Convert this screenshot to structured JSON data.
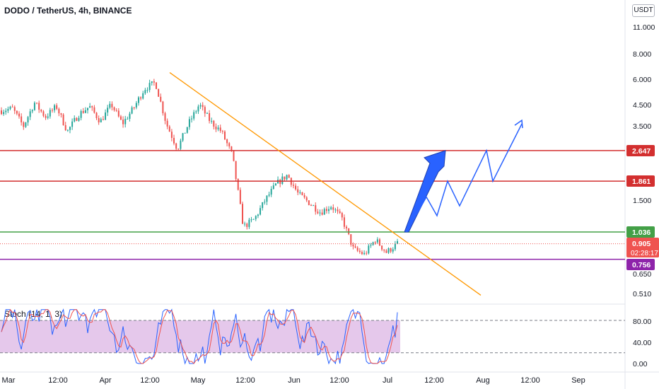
{
  "header": {
    "title": "DODO / TetherUS, 4h, BINANCE",
    "currency": "USDT"
  },
  "stoch": {
    "label": "Stoch (14, 1, 3)",
    "ticks": [
      "80.00",
      "40.00",
      "0.00"
    ],
    "levels": [
      80,
      20
    ]
  },
  "price_axis": {
    "ticks": [
      "11.000",
      "8.000",
      "6.000",
      "4.500",
      "3.500",
      "1.500",
      "0.650",
      "0.510"
    ]
  },
  "time_axis": {
    "ticks": [
      "Mar",
      "12:00",
      "Apr",
      "12:00",
      "May",
      "12:00",
      "Jun",
      "12:00",
      "Jul",
      "12:00",
      "Aug",
      "12:00",
      "Sep"
    ]
  },
  "price_labels": {
    "level_2647": {
      "text": "2.647",
      "color": "#d32f2f"
    },
    "level_1861": {
      "text": "1.861",
      "color": "#d32f2f"
    },
    "level_1036": {
      "text": "1.036",
      "color": "#43a047"
    },
    "current_price": {
      "text": "0.905",
      "color": "#ef5350"
    },
    "countdown": {
      "text": "02:28:17",
      "color": "#ef5350"
    },
    "level_0756": {
      "text": "0.756",
      "color": "#8e24aa"
    }
  },
  "colors": {
    "up": "#26a69a",
    "down": "#ef5350",
    "trendline": "#ff9800",
    "projection": "#2962ff",
    "stoch_k": "#2962ff",
    "stoch_d": "#ef5350",
    "stoch_band": "#e1bee7"
  },
  "chart_data": {
    "type": "candlestick",
    "title": "DODO / TetherUS, 4h, BINANCE",
    "xlabel": "",
    "ylabel": "",
    "y_scale": "log",
    "x": [
      "Mar",
      "Apr",
      "May",
      "Jun",
      "Jul",
      "Aug",
      "Sep"
    ],
    "price_path": [
      4.2,
      4.3,
      3.5,
      4.6,
      3.9,
      4.4,
      3.3,
      4.0,
      4.4,
      3.7,
      4.5,
      3.6,
      4.3,
      5.4,
      5.8,
      3.6,
      2.7,
      3.6,
      4.5,
      3.7,
      3.3,
      2.5,
      1.1,
      1.2,
      1.5,
      1.8,
      2.0,
      1.6,
      1.45,
      1.3,
      1.4,
      1.2,
      0.85,
      0.8,
      0.95,
      0.82,
      0.905
    ],
    "horizontal_levels": [
      2.647,
      1.861,
      1.036,
      0.756
    ],
    "current_price": 0.905,
    "trendline": {
      "start_price": 6.5,
      "end_price": 0.5
    },
    "projection_arrow": {
      "from_price": 1.036,
      "to_price": 2.647
    },
    "projection_path": [
      1.036,
      1.55,
      1.25,
      1.861,
      1.4,
      2.647,
      1.861,
      3.6
    ],
    "stochastic": {
      "k_min": 0,
      "k_max": 100,
      "upper": 80,
      "lower": 20,
      "last": 95
    }
  }
}
